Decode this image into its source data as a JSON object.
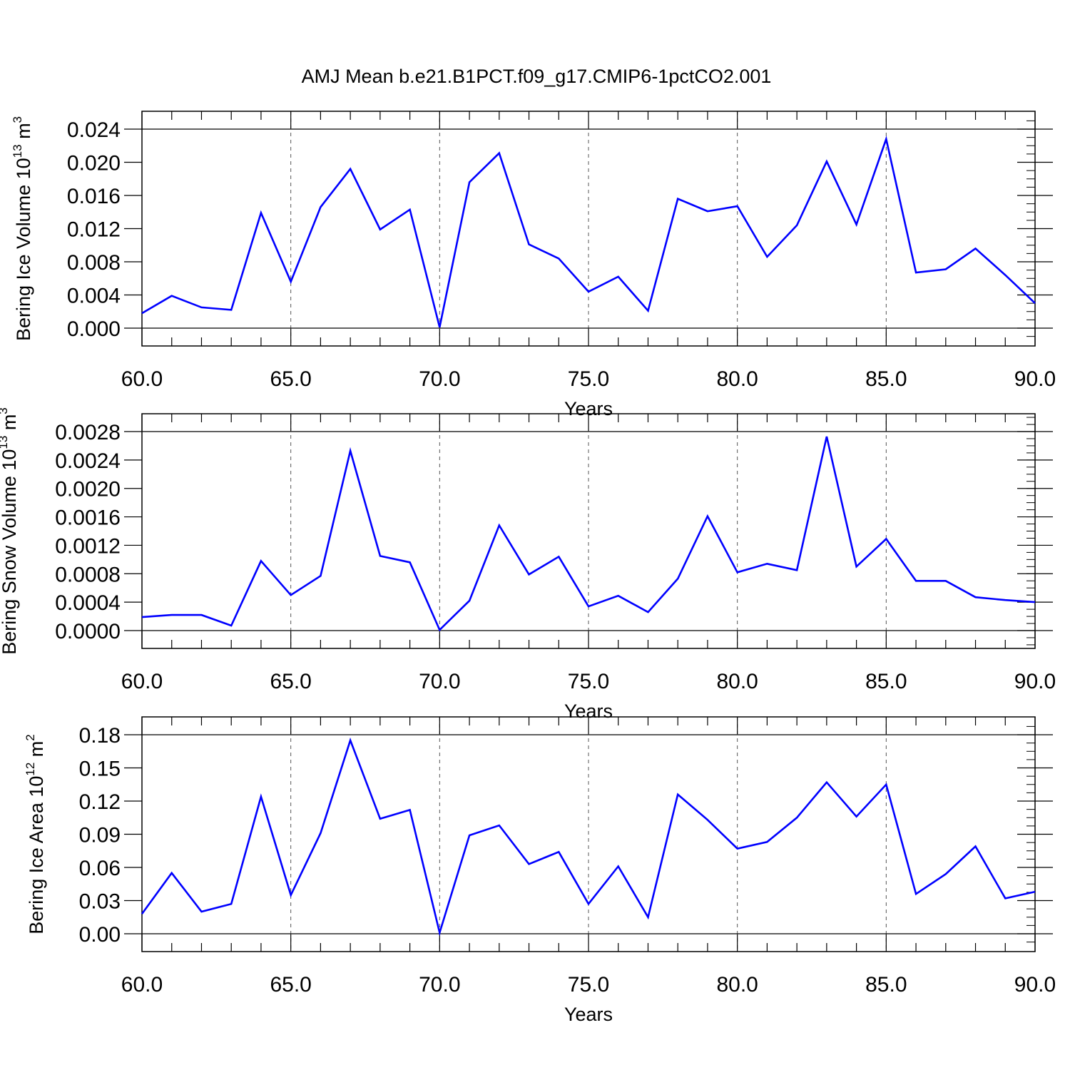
{
  "title": "AMJ Mean b.e21.B1PCT.f09_g17.CMIP6-1pctCO2.001",
  "chart_data": [
    {
      "type": "line",
      "xlabel": "Years",
      "ylabel": {
        "text": "Bering Ice Volume 10",
        "exp": "13",
        "unit": " m",
        "unit_exp": "3"
      },
      "xlim": [
        60,
        90
      ],
      "ylim": [
        0,
        0.024
      ],
      "xticks": [
        "60.0",
        "65.0",
        "70.0",
        "75.0",
        "80.0",
        "85.0",
        "90.0"
      ],
      "yticks": [
        "0.000",
        "0.004",
        "0.008",
        "0.012",
        "0.016",
        "0.020",
        "0.024"
      ],
      "x": [
        60,
        61,
        62,
        63,
        64,
        65,
        66,
        67,
        68,
        69,
        70,
        71,
        72,
        73,
        74,
        75,
        76,
        77,
        78,
        79,
        80,
        81,
        82,
        83,
        84,
        85,
        86,
        87,
        88,
        89,
        90
      ],
      "values": [
        0.0018,
        0.0039,
        0.0025,
        0.0022,
        0.0139,
        0.0056,
        0.0146,
        0.0192,
        0.0119,
        0.0143,
        0.0001,
        0.0176,
        0.0211,
        0.0101,
        0.0084,
        0.0044,
        0.0062,
        0.0021,
        0.0156,
        0.0141,
        0.0147,
        0.0086,
        0.0124,
        0.0201,
        0.0125,
        0.0228,
        0.0067,
        0.0071,
        0.0096,
        0.0064,
        0.003
      ],
      "color": "#0000ff",
      "grid": "vertical dashed"
    },
    {
      "type": "line",
      "xlabel": "Years",
      "ylabel": {
        "text": "Bering Snow Volume 10",
        "exp": "13",
        "unit": " m",
        "unit_exp": "3"
      },
      "xlim": [
        60,
        90
      ],
      "ylim": [
        0,
        0.0028
      ],
      "xticks": [
        "60.0",
        "65.0",
        "70.0",
        "75.0",
        "80.0",
        "85.0",
        "90.0"
      ],
      "yticks": [
        "0.0000",
        "0.0004",
        "0.0008",
        "0.0012",
        "0.0016",
        "0.0020",
        "0.0024",
        "0.0028"
      ],
      "x": [
        60,
        61,
        62,
        63,
        64,
        65,
        66,
        67,
        68,
        69,
        70,
        71,
        72,
        73,
        74,
        75,
        76,
        77,
        78,
        79,
        80,
        81,
        82,
        83,
        84,
        85,
        86,
        87,
        88,
        89,
        90
      ],
      "values": [
        0.00019,
        0.00022,
        0.00022,
        7e-05,
        0.00098,
        0.0005,
        0.00077,
        0.00253,
        0.00105,
        0.00096,
        1e-05,
        0.00042,
        0.00148,
        0.00079,
        0.00104,
        0.00034,
        0.00049,
        0.00026,
        0.00073,
        0.00161,
        0.00082,
        0.00094,
        0.00085,
        0.00273,
        0.0009,
        0.00129,
        0.0007,
        0.0007,
        0.00047,
        0.00043,
        0.0004
      ],
      "color": "#0000ff",
      "grid": "vertical dashed"
    },
    {
      "type": "line",
      "xlabel": "Years",
      "ylabel": {
        "text": "Bering Ice Area 10",
        "exp": "12",
        "unit": " m",
        "unit_exp": "2"
      },
      "xlim": [
        60,
        90
      ],
      "ylim": [
        0,
        0.18
      ],
      "xticks": [
        "60.0",
        "65.0",
        "70.0",
        "75.0",
        "80.0",
        "85.0",
        "90.0"
      ],
      "yticks": [
        "0.00",
        "0.03",
        "0.06",
        "0.09",
        "0.12",
        "0.15",
        "0.18"
      ],
      "x": [
        60,
        61,
        62,
        63,
        64,
        65,
        66,
        67,
        68,
        69,
        70,
        71,
        72,
        73,
        74,
        75,
        76,
        77,
        78,
        79,
        80,
        81,
        82,
        83,
        84,
        85,
        86,
        87,
        88,
        89,
        90
      ],
      "values": [
        0.018,
        0.055,
        0.02,
        0.027,
        0.124,
        0.035,
        0.091,
        0.175,
        0.104,
        0.112,
        0.001,
        0.089,
        0.098,
        0.063,
        0.074,
        0.027,
        0.061,
        0.015,
        0.126,
        0.103,
        0.077,
        0.083,
        0.105,
        0.137,
        0.106,
        0.135,
        0.036,
        0.054,
        0.079,
        0.032,
        0.038
      ],
      "color": "#0000ff",
      "grid": "vertical dashed"
    }
  ]
}
